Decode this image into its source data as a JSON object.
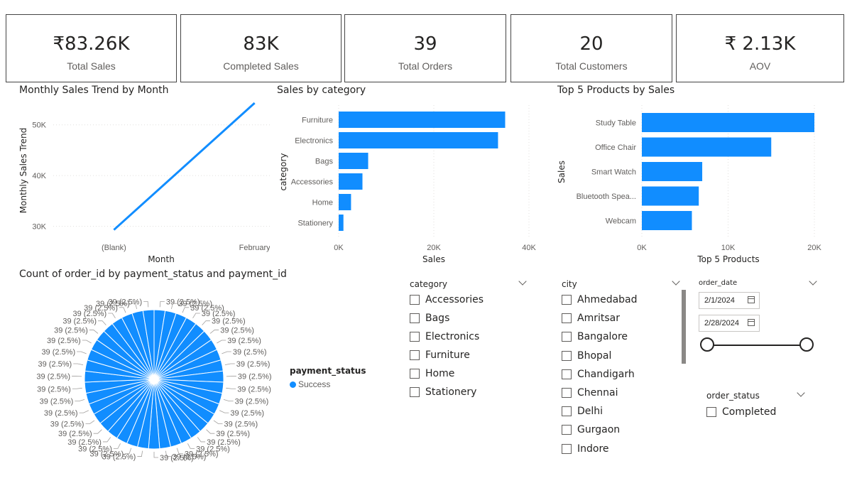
{
  "kpis": [
    {
      "value": "₹83.26K",
      "label": "Total Sales"
    },
    {
      "value": "83K",
      "label": "Completed Sales"
    },
    {
      "value": "39",
      "label": "Total Orders"
    },
    {
      "value": "20",
      "label": "Total Customers"
    },
    {
      "value": "₹ 2.13K",
      "label": "AOV"
    }
  ],
  "colors": {
    "accent": "#118DFF",
    "grid": "#e1dfdd",
    "border": "#444444"
  },
  "chart_data": [
    {
      "type": "line",
      "title": "Monthly Sales Trend by Month",
      "xlabel": "Month",
      "ylabel": "Monthly Sales Trend",
      "categories": [
        "(Blank)",
        "February"
      ],
      "values": [
        29300,
        54300
      ],
      "yticks": [
        "30K",
        "40K",
        "50K"
      ],
      "ytick_values": [
        30000,
        40000,
        50000
      ],
      "ylim": [
        27000,
        55000
      ]
    },
    {
      "type": "bar",
      "orientation": "horizontal",
      "title": "Sales by category",
      "xlabel": "Sales",
      "ylabel": "category",
      "categories": [
        "Furniture",
        "Electronics",
        "Bags",
        "Accessories",
        "Home",
        "Stationery"
      ],
      "values": [
        35000,
        33500,
        6200,
        5000,
        2600,
        1000
      ],
      "xticks": [
        "0K",
        "20K",
        "40K"
      ],
      "xtick_values": [
        0,
        20000,
        40000
      ],
      "xlim": [
        0,
        40000
      ]
    },
    {
      "type": "bar",
      "orientation": "horizontal",
      "title": "Top 5 Products by Sales",
      "xlabel": "Top 5 Products",
      "ylabel": "Sales",
      "categories": [
        "Study Table",
        "Office Chair",
        "Smart Watch",
        "Bluetooth Spea...",
        "Webcam"
      ],
      "values": [
        20000,
        15000,
        7000,
        6600,
        5800
      ],
      "xticks": [
        "0K",
        "10K",
        "20K"
      ],
      "xtick_values": [
        0,
        10000,
        20000
      ],
      "xlim": [
        0,
        20000
      ]
    },
    {
      "type": "pie",
      "title": "Count of order_id by payment_status and payment_id",
      "slice_count": 39,
      "slice_value": 39,
      "slice_label": "39 (2.5%)",
      "legend_title": "payment_status",
      "legend": [
        "Success"
      ]
    }
  ],
  "slicers": {
    "category": {
      "title": "category",
      "items": [
        "Accessories",
        "Bags",
        "Electronics",
        "Furniture",
        "Home",
        "Stationery"
      ]
    },
    "city": {
      "title": "city",
      "items": [
        "Ahmedabad",
        "Amritsar",
        "Bangalore",
        "Bhopal",
        "Chandigarh",
        "Chennai",
        "Delhi",
        "Gurgaon",
        "Indore"
      ]
    },
    "order_date": {
      "title": "order_date",
      "start": "2/1/2024",
      "end": "2/28/2024"
    },
    "order_status": {
      "title": "order_status",
      "items": [
        "Completed"
      ]
    }
  }
}
